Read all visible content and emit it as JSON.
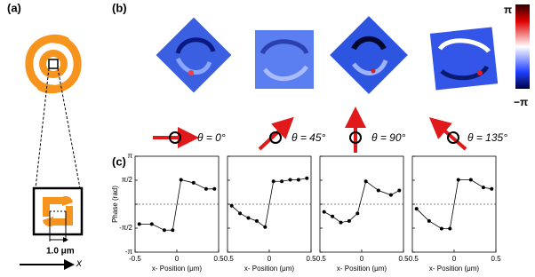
{
  "figure": {
    "panel_labels": [
      "(a)",
      "(b)",
      "(c)"
    ],
    "scale_label": "1.0 μm",
    "axis_label": "x",
    "colorbar": {
      "max": "π",
      "min": "−π"
    },
    "angles": [
      "θ = 0°",
      "θ = 45°",
      "θ = 90°",
      "θ = 135°"
    ]
  },
  "chart_data": [
    {
      "type": "line",
      "xlabel": "x- Position (μm)",
      "ylabel": "Phase (rad)",
      "color": "#000000",
      "x": [
        -0.45,
        -0.3,
        -0.15,
        -0.05,
        0.05,
        0.2,
        0.35,
        0.45
      ],
      "values": [
        -1.3,
        -1.3,
        -1.7,
        -1.7,
        1.6,
        1.4,
        1.0,
        1.0
      ],
      "xlim": [
        -0.5,
        0.5
      ],
      "xticks": [
        -0.5,
        0,
        0.5
      ],
      "ylim": [
        -3.1416,
        3.1416
      ],
      "yticks": [
        {
          "value": -3.1416,
          "label": "-π"
        },
        {
          "value": -1.5708,
          "label": "-π/2"
        },
        0,
        {
          "value": 1.5708,
          "label": "π/2"
        },
        {
          "value": 3.1416,
          "label": "π"
        }
      ]
    },
    {
      "type": "line",
      "xlabel": "x- Position (μm)",
      "color": "#000000",
      "x": [
        -0.45,
        -0.35,
        -0.25,
        -0.15,
        -0.05,
        0.05,
        0.15,
        0.25,
        0.35,
        0.45
      ],
      "values": [
        -0.1,
        -0.6,
        -0.9,
        -1.1,
        -1.5,
        1.5,
        1.5,
        1.6,
        1.6,
        1.7
      ],
      "xlim": [
        -0.5,
        0.5
      ],
      "xticks": [
        -0.5,
        0,
        0.5
      ],
      "ylim": [
        -3.1416,
        3.1416
      ],
      "yticks": [
        -3.1416,
        -1.5708,
        0,
        1.5708,
        3.1416
      ]
    },
    {
      "type": "line",
      "xlabel": "x- Position (μm)",
      "color": "#000000",
      "x": [
        -0.45,
        -0.35,
        -0.25,
        -0.15,
        -0.05,
        0.05,
        0.2,
        0.35,
        0.45
      ],
      "values": [
        -0.5,
        -0.8,
        -1.2,
        -1.1,
        -0.6,
        1.5,
        0.9,
        0.6,
        0.9
      ],
      "xlim": [
        -0.5,
        0.5
      ],
      "xticks": [
        -0.5,
        0,
        0.5
      ],
      "ylim": [
        -3.1416,
        3.1416
      ],
      "yticks": [
        -3.1416,
        -1.5708,
        0,
        1.5708,
        3.1416
      ]
    },
    {
      "type": "line",
      "xlabel": "x- Position (μm)",
      "color": "#000000",
      "x": [
        -0.45,
        -0.3,
        -0.15,
        -0.05,
        0.05,
        0.2,
        0.35,
        0.45
      ],
      "values": [
        -0.3,
        -1.1,
        -1.6,
        -1.6,
        1.6,
        1.6,
        1.1,
        1.0
      ],
      "xlim": [
        -0.5,
        0.5
      ],
      "xticks": [
        -0.5,
        0,
        0.5
      ],
      "ylim": [
        -3.1416,
        3.1416
      ],
      "yticks": [
        -3.1416,
        -1.5708,
        0,
        1.5708,
        3.1416
      ]
    }
  ]
}
